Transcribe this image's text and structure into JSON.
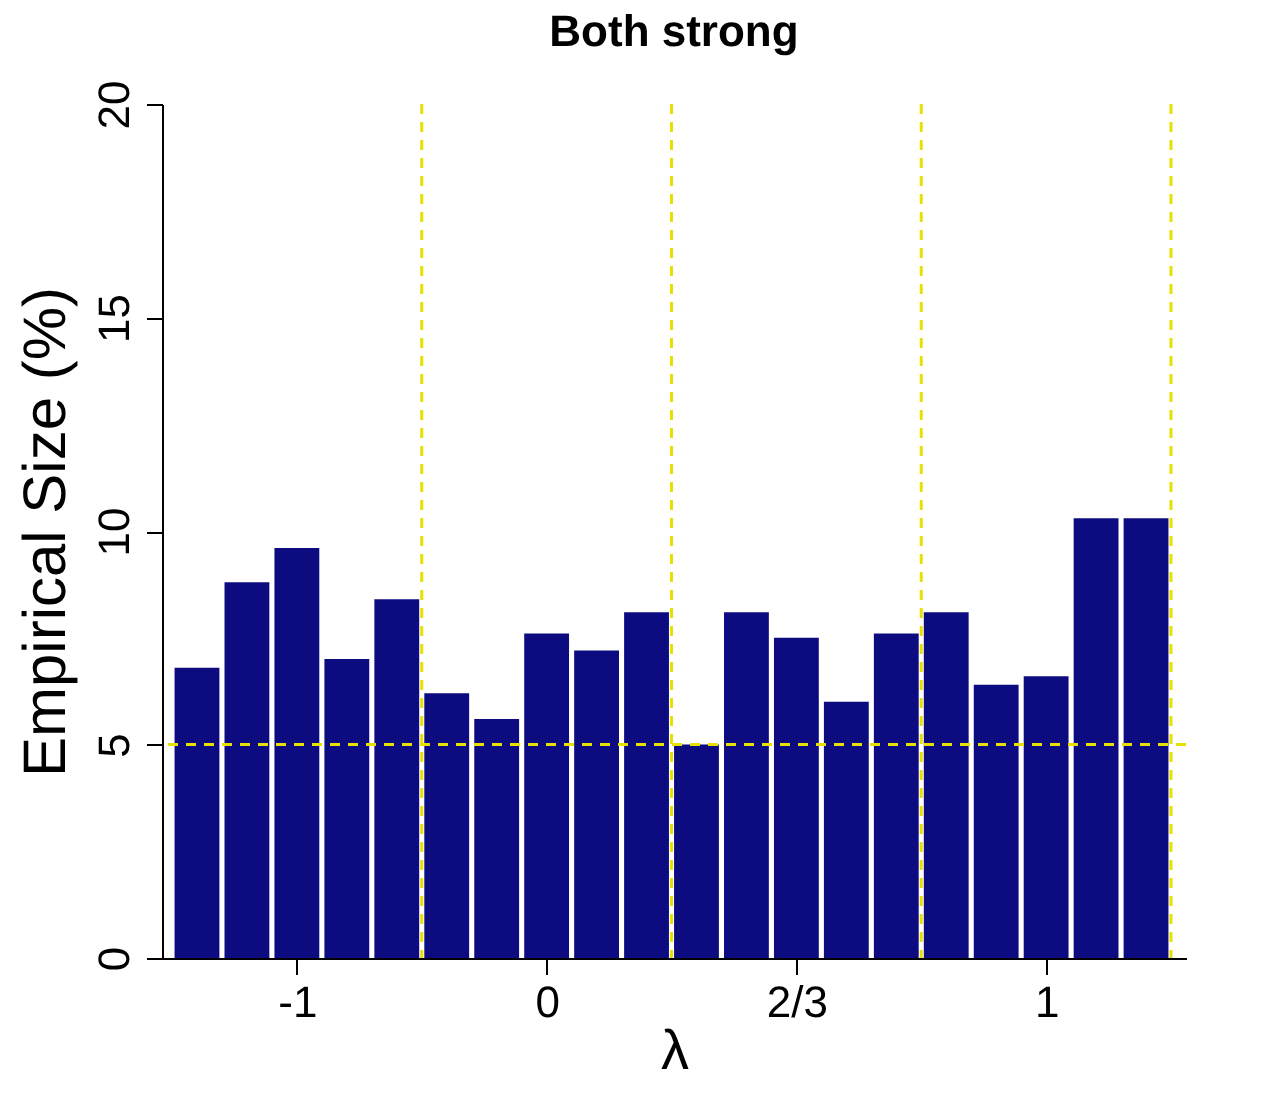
{
  "chart_data": {
    "type": "bar",
    "title": "Both strong",
    "xlabel": "λ",
    "ylabel": "Empirical Size (%)",
    "categories": [
      null,
      null,
      "-1",
      null,
      null,
      null,
      null,
      "0",
      null,
      null,
      null,
      null,
      "2/3",
      null,
      null,
      null,
      null,
      "1",
      null,
      null
    ],
    "values": [
      6.8,
      8.8,
      9.6,
      7.0,
      8.4,
      6.2,
      5.6,
      7.6,
      7.2,
      8.1,
      5.0,
      8.1,
      7.5,
      6.0,
      7.6,
      8.1,
      6.4,
      6.6,
      10.3,
      10.3
    ],
    "color": "#0c0c80",
    "ylim": [
      0,
      20
    ],
    "yticks": [
      0,
      5,
      10,
      15,
      20
    ],
    "grid": false,
    "ref_lines": [
      {
        "axis": "y",
        "value": 5,
        "color": "#e8e000",
        "line_style": "dashed"
      }
    ]
  }
}
